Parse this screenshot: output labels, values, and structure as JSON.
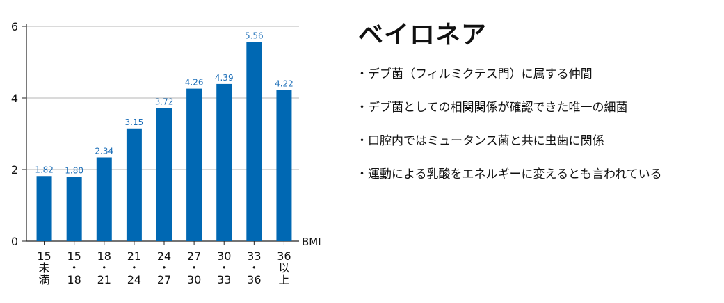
{
  "side": {
    "title": "ベイロネア",
    "points": [
      "・デブ菌（フィルミクテス門）に属する仲間",
      "・デブ菌としての相関関係が確認できた唯一の細菌",
      "・口腔内ではミュータンス菌と共に虫歯に関係",
      "・運動による乳酸をエネルギーに変えるとも言われている"
    ]
  },
  "chart_data": {
    "type": "bar",
    "categories": [
      [
        "15",
        "未",
        "満"
      ],
      [
        "15",
        "・",
        "18"
      ],
      [
        "18",
        "・",
        "21"
      ],
      [
        "21",
        "・",
        "24"
      ],
      [
        "24",
        "・",
        "27"
      ],
      [
        "27",
        "・",
        "30"
      ],
      [
        "30",
        "・",
        "33"
      ],
      [
        "33",
        "・",
        "36"
      ],
      [
        "36",
        "以",
        "上"
      ]
    ],
    "values": [
      1.82,
      1.8,
      2.34,
      3.15,
      3.72,
      4.26,
      4.39,
      5.56,
      4.22
    ],
    "value_labels": [
      "1.82",
      "1.80",
      "2.34",
      "3.15",
      "3.72",
      "4.26",
      "4.39",
      "5.56",
      "4.22"
    ],
    "xlabel": "BMI",
    "ylabel": "",
    "ylim": [
      0,
      6
    ],
    "yticks": [
      "0",
      "2",
      "4",
      "6"
    ],
    "grid": true,
    "bar_color": "#0068b3",
    "label_color": "#1d6fb8"
  }
}
